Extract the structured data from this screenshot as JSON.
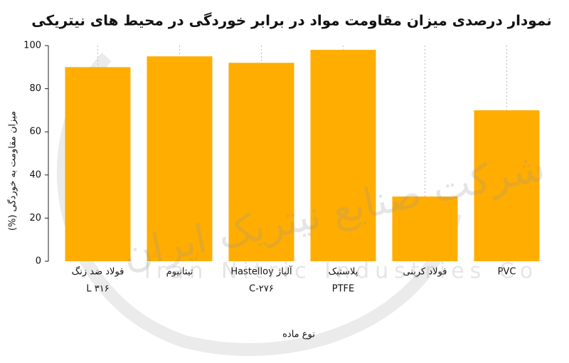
{
  "chart_data": {
    "type": "bar",
    "title": "نمودار درصدی میزان مقاومت مواد در برابر خوردگی در محیط های نیتریکی",
    "x_label": "نوع ماده",
    "y_label": "میزان مقاومت به خوردگی (%)",
    "categories": [
      [
        "فولاد ضد زنگ",
        "۳۱۶ L"
      ],
      [
        "تیتانیوم"
      ],
      [
        "آلیاژ Hastelloy",
        "C-۲۷۶"
      ],
      [
        "پلاستیک",
        "PTFE"
      ],
      [
        "فولاد کربنی"
      ],
      [
        "PVC"
      ]
    ],
    "values": [
      90,
      95,
      92,
      98,
      30,
      70
    ],
    "color": "#ffad00",
    "ylim": [
      0,
      100
    ],
    "yticks": [
      0,
      20,
      40,
      60,
      80,
      100
    ],
    "grid": true,
    "watermark": [
      "شرکت صنایع نیتریک ایران",
      "Iran Nitric Industries Co"
    ]
  }
}
